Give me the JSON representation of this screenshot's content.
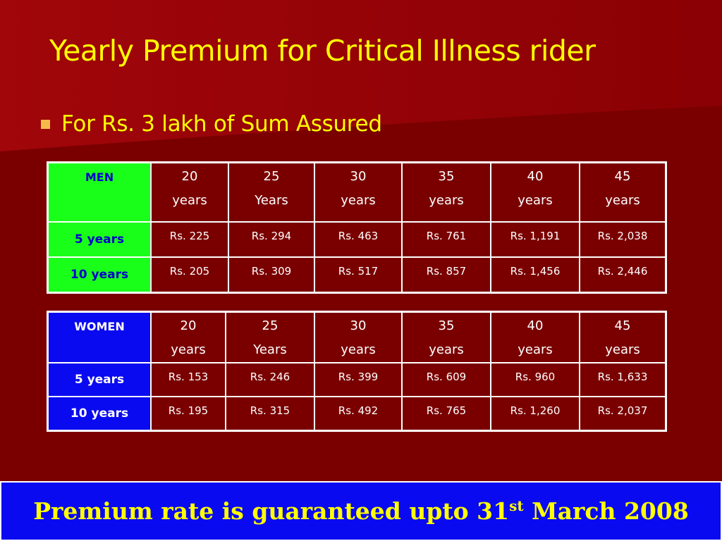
{
  "slide": {
    "title": "Yearly Premium for Critical Illness rider",
    "bullet": "For Rs. 3 lakh of Sum Assured",
    "footer": {
      "text_before": "Premium rate is guaranteed upto 31",
      "superscript": "st",
      "text_after": " March 2008"
    }
  },
  "colors": {
    "background": "#7a0000",
    "title_text": "#ffff00",
    "men_header_bg": "#1aff1a",
    "men_header_text": "#0000cc",
    "women_header_bg": "#0a0af0",
    "footer_bg": "#0a0af0"
  },
  "men_table": {
    "corner": "MEN",
    "age_headers": [
      {
        "num": "20",
        "unit": "years"
      },
      {
        "num": "25",
        "unit": "Years"
      },
      {
        "num": "30",
        "unit": "years"
      },
      {
        "num": "35",
        "unit": "years"
      },
      {
        "num": "40",
        "unit": "years"
      },
      {
        "num": "45",
        "unit": "years"
      }
    ],
    "rows": [
      {
        "label": "5 years",
        "values": [
          "Rs. 225",
          "Rs. 294",
          "Rs. 463",
          "Rs. 761",
          "Rs. 1,191",
          "Rs. 2,038"
        ]
      },
      {
        "label": "10 years",
        "values": [
          "Rs. 205",
          "Rs. 309",
          "Rs. 517",
          "Rs. 857",
          "Rs. 1,456",
          "Rs. 2,446"
        ]
      }
    ]
  },
  "women_table": {
    "corner": "WOMEN",
    "age_headers": [
      {
        "num": "20",
        "unit": "years"
      },
      {
        "num": "25",
        "unit": "Years"
      },
      {
        "num": "30",
        "unit": "years"
      },
      {
        "num": "35",
        "unit": "years"
      },
      {
        "num": "40",
        "unit": "years"
      },
      {
        "num": "45",
        "unit": "years"
      }
    ],
    "rows": [
      {
        "label": "5 years",
        "values": [
          "Rs. 153",
          "Rs. 246",
          "Rs. 399",
          "Rs. 609",
          "Rs. 960",
          "Rs. 1,633"
        ]
      },
      {
        "label": "10 years",
        "values": [
          "Rs. 195",
          "Rs. 315",
          "Rs. 492",
          "Rs. 765",
          "Rs. 1,260",
          "Rs. 2,037"
        ]
      }
    ]
  }
}
